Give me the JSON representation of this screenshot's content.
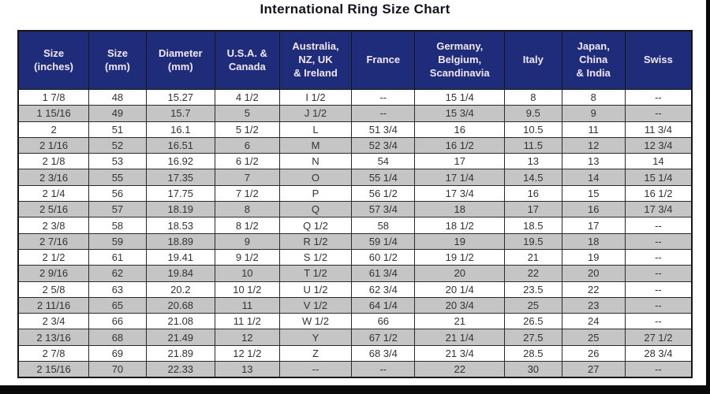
{
  "title": "International Ring Size Chart",
  "colors": {
    "header_bg": "#1e2c7a",
    "header_text": "#f2e8f4",
    "row_bg": "#ffffff",
    "row_alt_bg": "#c5c5c5",
    "cell_text": "#333333",
    "border": "#161616",
    "frame": "#0a0a0a"
  },
  "chart_data": {
    "type": "table",
    "title": "International Ring Size Chart",
    "columns": [
      "Size\n(inches)",
      "Size\n(mm)",
      "Diameter\n(mm)",
      "U.S.A. &\nCanada",
      "Australia,\nNZ, UK\n& Ireland",
      "France",
      "Germany,\nBelgium,\nScandinavia",
      "Italy",
      "Japan,\nChina\n& India",
      "Swiss"
    ],
    "rows": [
      [
        "1 7/8",
        "48",
        "15.27",
        "4 1/2",
        "I 1/2",
        "--",
        "15 1/4",
        "8",
        "8",
        "--"
      ],
      [
        "1 15/16",
        "49",
        "15.7",
        "5",
        "J 1/2",
        "--",
        "15 3/4",
        "9.5",
        "9",
        "--"
      ],
      [
        "2",
        "51",
        "16.1",
        "5 1/2",
        "L",
        "51 3/4",
        "16",
        "10.5",
        "11",
        "11 3/4"
      ],
      [
        "2 1/16",
        "52",
        "16.51",
        "6",
        "M",
        "52 3/4",
        "16 1/2",
        "11.5",
        "12",
        "12 3/4"
      ],
      [
        "2 1/8",
        "53",
        "16.92",
        "6 1/2",
        "N",
        "54",
        "17",
        "13",
        "13",
        "14"
      ],
      [
        "2 3/16",
        "55",
        "17.35",
        "7",
        "O",
        "55 1/4",
        "17 1/4",
        "14.5",
        "14",
        "15 1/4"
      ],
      [
        "2 1/4",
        "56",
        "17.75",
        "7 1/2",
        "P",
        "56 1/2",
        "17 3/4",
        "16",
        "15",
        "16 1/2"
      ],
      [
        "2 5/16",
        "57",
        "18.19",
        "8",
        "Q",
        "57 3/4",
        "18",
        "17",
        "16",
        "17 3/4"
      ],
      [
        "2 3/8",
        "58",
        "18.53",
        "8 1/2",
        "Q 1/2",
        "58",
        "18 1/2",
        "18.5",
        "17",
        "--"
      ],
      [
        "2 7/16",
        "59",
        "18.89",
        "9",
        "R 1/2",
        "59 1/4",
        "19",
        "19.5",
        "18",
        "--"
      ],
      [
        "2 1/2",
        "61",
        "19.41",
        "9 1/2",
        "S 1/2",
        "60 1/2",
        "19 1/2",
        "21",
        "19",
        "--"
      ],
      [
        "2 9/16",
        "62",
        "19.84",
        "10",
        "T 1/2",
        "61 3/4",
        "20",
        "22",
        "20",
        "--"
      ],
      [
        "2 5/8",
        "63",
        "20.2",
        "10 1/2",
        "U 1/2",
        "62 3/4",
        "20 1/4",
        "23.5",
        "22",
        "--"
      ],
      [
        "2 11/16",
        "65",
        "20.68",
        "11",
        "V 1/2",
        "64 1/4",
        "20 3/4",
        "25",
        "23",
        "--"
      ],
      [
        "2 3/4",
        "66",
        "21.08",
        "11 1/2",
        "W 1/2",
        "66",
        "21",
        "26.5",
        "24",
        "--"
      ],
      [
        "2 13/16",
        "68",
        "21.49",
        "12",
        "Y",
        "67 1/2",
        "21 1/4",
        "27.5",
        "25",
        "27 1/2"
      ],
      [
        "2 7/8",
        "69",
        "21.89",
        "12 1/2",
        "Z",
        "68 3/4",
        "21 3/4",
        "28.5",
        "26",
        "28 3/4"
      ],
      [
        "2 15/16",
        "70",
        "22.33",
        "13",
        "--",
        "--",
        "22",
        "30",
        "27",
        "--"
      ]
    ],
    "layout_hints": {
      "row_striping": "alternating, first data row white then gray",
      "header_style": "dark navy background, white bold text, multi-line"
    }
  }
}
